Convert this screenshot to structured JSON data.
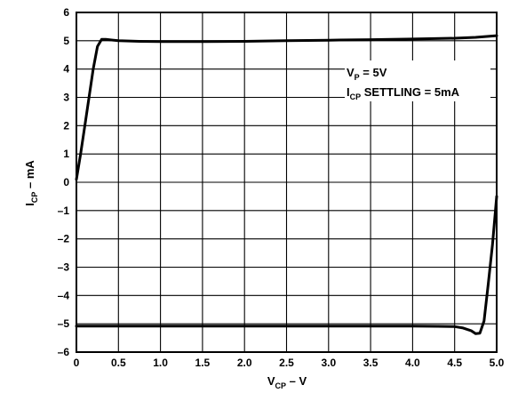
{
  "chart_data": {
    "type": "line",
    "title": "",
    "xlabel": {
      "main": "V",
      "sub": "CP",
      "suffix": " – V"
    },
    "ylabel": {
      "main": "I",
      "sub": "CP",
      "suffix": " – mA"
    },
    "xlim": [
      0,
      5
    ],
    "ylim": [
      -6,
      6
    ],
    "x_ticks": [
      0,
      0.5,
      1.0,
      1.5,
      2.0,
      2.5,
      3.0,
      3.5,
      4.0,
      4.5,
      5.0
    ],
    "x_tick_labels": [
      "0",
      "0.5",
      "1.0",
      "1.5",
      "2.0",
      "2.5",
      "3.0",
      "3.5",
      "4.0",
      "4.5",
      "5.0"
    ],
    "y_ticks": [
      -6,
      -5,
      -4,
      -3,
      -2,
      -1,
      0,
      1,
      2,
      3,
      4,
      5,
      6
    ],
    "y_tick_labels": [
      "–6",
      "–5",
      "–4",
      "–3",
      "–2",
      "–1",
      "0",
      "1",
      "2",
      "3",
      "4",
      "5",
      "6"
    ],
    "grid": true,
    "annotations": [
      {
        "main": "V",
        "sub": "P",
        "rest": " = 5V"
      },
      {
        "main": "I",
        "sub": "CP",
        "rest": " SETTLING = 5mA"
      }
    ],
    "series": [
      {
        "color": "#000000",
        "x": [
          0,
          0.05,
          0.1,
          0.15,
          0.2,
          0.25,
          0.3,
          0.35,
          0.5,
          0.75,
          1.0,
          1.5,
          2.0,
          2.5,
          3.0,
          3.5,
          4.0,
          4.5,
          4.75,
          5.0
        ],
        "y": [
          0.1,
          1.0,
          2.0,
          3.0,
          4.0,
          4.8,
          5.05,
          5.05,
          5.0,
          4.98,
          4.97,
          4.97,
          4.98,
          5.0,
          5.02,
          5.04,
          5.06,
          5.09,
          5.12,
          5.18
        ]
      },
      {
        "color": "#000000",
        "x": [
          0,
          0.5,
          1.0,
          1.5,
          2.0,
          2.5,
          3.0,
          3.5,
          4.0,
          4.3,
          4.5,
          4.6,
          4.7,
          4.75,
          4.8,
          4.85,
          4.9,
          4.95,
          5.0
        ],
        "y": [
          -5.08,
          -5.08,
          -5.08,
          -5.08,
          -5.08,
          -5.08,
          -5.08,
          -5.08,
          -5.08,
          -5.09,
          -5.1,
          -5.15,
          -5.25,
          -5.35,
          -5.33,
          -4.9,
          -3.6,
          -2.2,
          -0.5
        ]
      }
    ]
  }
}
